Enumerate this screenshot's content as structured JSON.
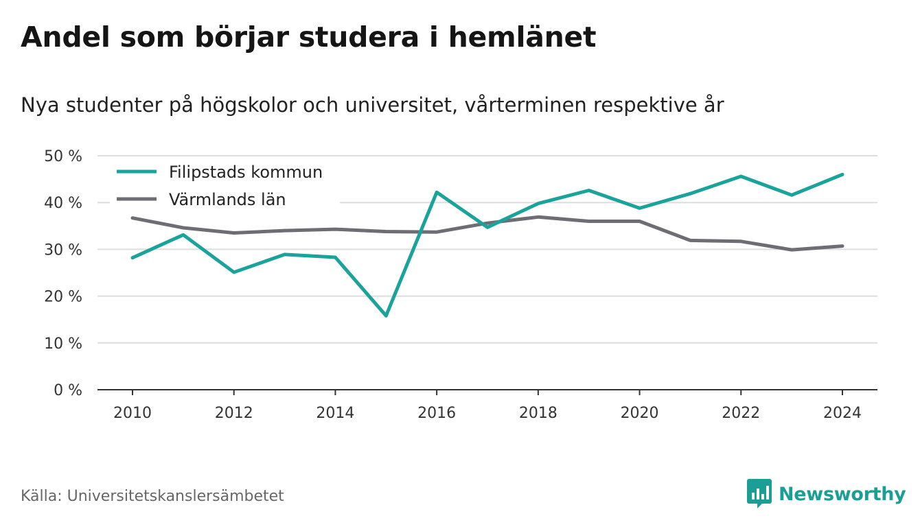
{
  "title": "Andel som börjar studera i hemlänet",
  "subtitle": "Nya studenter på högskolor och universitet, vårterminen respektive år",
  "source": "Källa: Universitetskanslersämbetet",
  "brand": "Newsworthy",
  "colors": {
    "teal": "#1aa39b",
    "gray": "#6e6d74",
    "grid": "#dddddd",
    "axis": "#333333"
  },
  "chart_data": {
    "type": "line",
    "x": [
      2010,
      2011,
      2012,
      2013,
      2014,
      2015,
      2016,
      2017,
      2018,
      2019,
      2020,
      2021,
      2022,
      2023,
      2024
    ],
    "xticks": [
      "2010",
      "2012",
      "2014",
      "2016",
      "2018",
      "2020",
      "2022",
      "2024"
    ],
    "xtick_values": [
      2010,
      2012,
      2014,
      2016,
      2018,
      2020,
      2022,
      2024
    ],
    "ylim": [
      0,
      50
    ],
    "yticks": [
      "0 %",
      "10 %",
      "20 %",
      "30 %",
      "40 %",
      "50 %"
    ],
    "ytick_values": [
      0,
      10,
      20,
      30,
      40,
      50
    ],
    "grid": true,
    "legend_position": "top-left",
    "series": [
      {
        "name": "Filipstads kommun",
        "color": "#1aa39b",
        "values": [
          28.2,
          33.1,
          25.1,
          28.9,
          28.3,
          15.8,
          42.2,
          34.7,
          39.8,
          42.6,
          38.8,
          41.9,
          45.6,
          41.6,
          46.0
        ]
      },
      {
        "name": "Värmlands län",
        "color": "#6e6d74",
        "values": [
          36.7,
          34.6,
          33.5,
          34.0,
          34.3,
          33.8,
          33.7,
          35.6,
          36.9,
          36.0,
          36.0,
          31.9,
          31.7,
          29.9,
          30.7
        ]
      }
    ]
  }
}
